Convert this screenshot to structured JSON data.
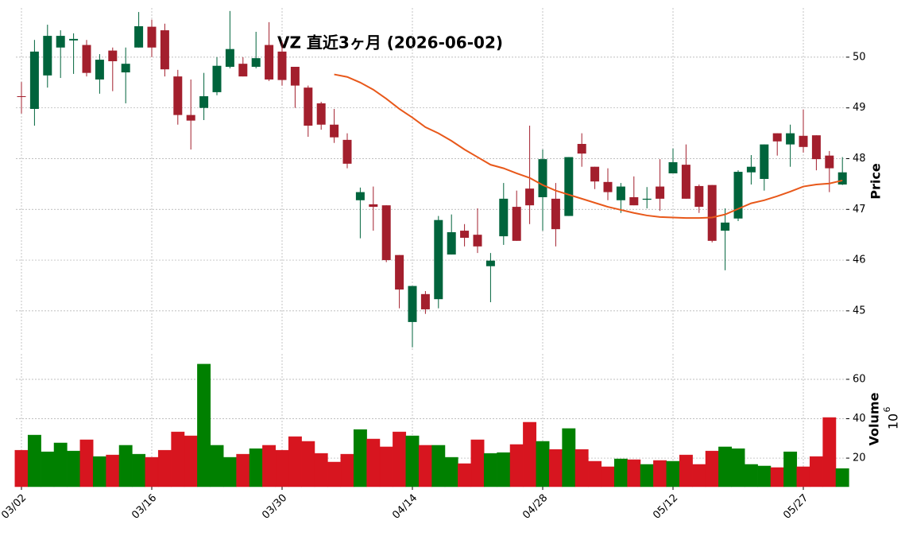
{
  "chart_data": {
    "type": "candlestick",
    "title": "VZ  直近3ヶ月  (2026-06-02)",
    "ylabel": "Price",
    "categories": [
      "03/02",
      null,
      null,
      null,
      null,
      null,
      null,
      null,
      null,
      null,
      "03/16",
      null,
      null,
      null,
      null,
      null,
      null,
      null,
      null,
      null,
      "03/30",
      null,
      null,
      null,
      null,
      null,
      null,
      null,
      null,
      null,
      "04/14",
      null,
      null,
      null,
      null,
      null,
      null,
      null,
      null,
      null,
      "04/28",
      null,
      null,
      null,
      null,
      null,
      null,
      null,
      null,
      null,
      "05/12",
      null,
      null,
      null,
      null,
      null,
      null,
      null,
      null,
      null,
      "05/27",
      null,
      null,
      null
    ],
    "open": [
      49.23,
      48.98,
      49.64,
      50.19,
      50.33,
      50.24,
      49.56,
      50.13,
      49.7,
      50.19,
      50.6,
      50.53,
      49.62,
      48.86,
      49.0,
      49.31,
      49.81,
      49.87,
      49.81,
      50.24,
      50.11,
      49.81,
      49.4,
      49.09,
      48.67,
      48.37,
      47.18,
      47.1,
      47.08,
      46.1,
      44.78,
      45.33,
      45.23,
      46.11,
      46.58,
      46.5,
      45.88,
      46.47,
      47.05,
      47.41,
      47.24,
      47.21,
      46.87,
      48.29,
      47.84,
      47.54,
      47.18,
      47.24,
      47.19,
      47.45,
      47.71,
      47.88,
      47.46,
      47.48,
      46.58,
      46.82,
      47.73,
      47.6,
      48.5,
      48.28,
      48.45,
      48.46,
      48.06,
      47.49
    ],
    "high": [
      49.51,
      50.34,
      50.64,
      50.53,
      50.47,
      50.34,
      50.06,
      50.19,
      50.19,
      50.89,
      50.74,
      50.66,
      49.75,
      49.56,
      49.69,
      50.0,
      50.91,
      50.0,
      50.5,
      50.69,
      50.31,
      49.81,
      49.44,
      49.12,
      48.98,
      48.5,
      47.43,
      47.45,
      47.08,
      46.1,
      45.49,
      45.39,
      46.87,
      46.9,
      46.71,
      47.02,
      46.14,
      47.52,
      47.37,
      48.65,
      48.18,
      47.52,
      48.03,
      48.5,
      47.84,
      47.81,
      47.52,
      47.65,
      47.44,
      47.99,
      48.2,
      48.28,
      47.49,
      47.48,
      47.02,
      47.77,
      48.07,
      48.28,
      48.5,
      48.67,
      48.97,
      48.46,
      48.15,
      48.03
    ],
    "low": [
      48.89,
      48.65,
      49.4,
      49.59,
      49.67,
      49.62,
      49.28,
      49.33,
      49.09,
      50.19,
      50.0,
      49.62,
      48.67,
      48.18,
      48.76,
      49.25,
      49.78,
      49.62,
      49.78,
      49.53,
      49.44,
      49.0,
      48.43,
      48.57,
      48.31,
      47.81,
      46.43,
      46.58,
      45.96,
      45.05,
      44.28,
      44.94,
      45.05,
      46.11,
      46.27,
      46.14,
      45.17,
      46.3,
      46.38,
      46.71,
      46.58,
      46.27,
      46.87,
      47.84,
      47.4,
      47.18,
      46.93,
      47.08,
      47.02,
      46.97,
      47.71,
      47.21,
      46.93,
      46.35,
      45.8,
      46.77,
      47.49,
      47.37,
      48.06,
      47.84,
      48.12,
      47.77,
      47.34,
      47.48
    ],
    "close": [
      49.22,
      50.11,
      50.42,
      50.42,
      50.36,
      49.69,
      49.95,
      49.92,
      49.87,
      50.61,
      50.19,
      49.76,
      48.86,
      48.75,
      49.23,
      49.83,
      50.16,
      49.62,
      49.98,
      49.56,
      49.55,
      49.44,
      48.65,
      48.67,
      48.42,
      47.9,
      47.34,
      47.05,
      46.0,
      45.42,
      45.49,
      45.03,
      46.79,
      46.55,
      46.44,
      46.27,
      45.99,
      47.21,
      46.38,
      47.08,
      47.99,
      46.61,
      48.03,
      48.1,
      47.55,
      47.34,
      47.45,
      47.08,
      47.21,
      47.21,
      47.93,
      47.21,
      47.05,
      46.38,
      46.74,
      47.74,
      47.84,
      48.28,
      48.34,
      48.5,
      48.23,
      47.99,
      47.81,
      47.73
    ],
    "up_color": "#00643c",
    "down_color": "#a31f2d",
    "ma": {
      "color": "#e8581a",
      "values": [
        null,
        null,
        null,
        null,
        null,
        null,
        null,
        null,
        null,
        null,
        null,
        null,
        null,
        null,
        null,
        null,
        null,
        null,
        null,
        null,
        null,
        null,
        null,
        null,
        49.66,
        49.61,
        49.5,
        49.36,
        49.18,
        48.98,
        48.81,
        48.62,
        48.5,
        48.35,
        48.18,
        48.03,
        47.88,
        47.81,
        47.71,
        47.62,
        47.48,
        47.37,
        47.29,
        47.21,
        47.13,
        47.05,
        46.99,
        46.93,
        46.88,
        46.85,
        46.84,
        46.83,
        46.83,
        46.84,
        46.9,
        47.01,
        47.12,
        47.18,
        47.26,
        47.35,
        47.45,
        47.49,
        47.51,
        47.57
      ]
    },
    "ylim": [
      44.23,
      50.97
    ],
    "yticks": [
      45,
      46,
      47,
      48,
      49,
      50
    ],
    "grid": true,
    "volume": {
      "ylabel": "Volume",
      "scale_base": "10",
      "scale_exponent": "6",
      "up_color": "#008000",
      "down_color": "#d7151f",
      "values": [
        24,
        31.7,
        23.2,
        27.7,
        23.6,
        29.3,
        20.8,
        21.6,
        26.5,
        22,
        20.4,
        24,
        33.3,
        31.3,
        67.7,
        26.5,
        20.4,
        22,
        24.8,
        26.5,
        24,
        30.9,
        28.5,
        22.4,
        18,
        22,
        34.5,
        29.7,
        25.7,
        33.3,
        31.3,
        26.5,
        26.5,
        20.4,
        17.2,
        29.3,
        22.4,
        22.8,
        26.9,
        38.2,
        28.5,
        24.4,
        35,
        24.4,
        18.4,
        15.6,
        19.6,
        19.2,
        16.8,
        18.8,
        18.4,
        21.6,
        16.8,
        23.6,
        25.7,
        24.8,
        16.8,
        16,
        15.2,
        23.2,
        15.6,
        20.8,
        40.6,
        14.7
      ],
      "ylim": [
        5.5,
        72.9
      ],
      "yticks": [
        20,
        40,
        60
      ]
    }
  }
}
